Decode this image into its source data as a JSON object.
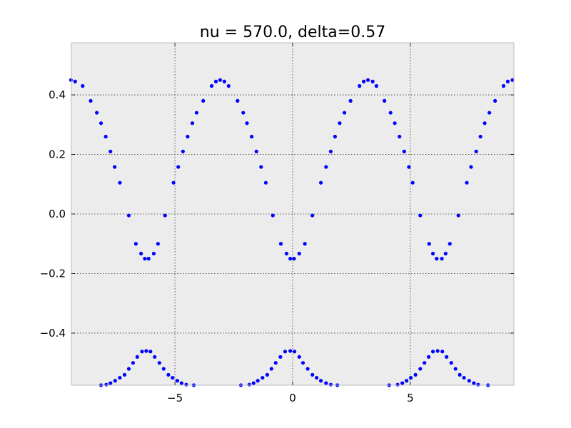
{
  "chart_data": {
    "type": "scatter",
    "title": "nu = 570.0, delta=0.57",
    "xlabel": "",
    "ylabel": "",
    "xlim": [
      -9.4,
      9.4
    ],
    "ylim": [
      -0.575,
      0.575
    ],
    "grid": true,
    "marker_color": "#0000ff",
    "background_color": "#ececec",
    "x_ticks": [
      {
        "value": -5,
        "label": "−5"
      },
      {
        "value": 0,
        "label": "0"
      },
      {
        "value": 5,
        "label": "5"
      }
    ],
    "y_ticks": [
      {
        "value": -0.4,
        "label": "−0.4"
      },
      {
        "value": -0.2,
        "label": "−0.2"
      },
      {
        "value": 0.0,
        "label": "0.0"
      },
      {
        "value": 0.2,
        "label": "0.2"
      },
      {
        "value": 0.4,
        "label": "0.4"
      }
    ],
    "series": [
      {
        "points": [
          [
            -9.42,
            0.45
          ],
          [
            -9.24,
            0.445
          ],
          [
            -8.92,
            0.43
          ],
          [
            -8.58,
            0.38
          ],
          [
            -8.32,
            0.34
          ],
          [
            -8.14,
            0.305
          ],
          [
            -7.94,
            0.26
          ],
          [
            -7.74,
            0.21
          ],
          [
            -7.56,
            0.158
          ],
          [
            -7.34,
            0.105
          ],
          [
            -6.96,
            -0.005
          ],
          [
            -6.66,
            -0.1
          ],
          [
            -6.44,
            -0.133
          ],
          [
            -6.28,
            -0.15
          ],
          [
            -6.12,
            -0.15
          ],
          [
            -5.9,
            -0.133
          ],
          [
            -5.72,
            -0.1
          ],
          [
            -5.42,
            -0.005
          ],
          [
            -5.06,
            0.105
          ],
          [
            -4.86,
            0.158
          ],
          [
            -4.66,
            0.21
          ],
          [
            -4.46,
            0.26
          ],
          [
            -4.26,
            0.305
          ],
          [
            -4.08,
            0.34
          ],
          [
            -3.8,
            0.38
          ],
          [
            -3.44,
            0.43
          ],
          [
            -3.26,
            0.445
          ],
          [
            -3.08,
            0.45
          ],
          [
            -2.9,
            0.445
          ],
          [
            -2.72,
            0.43
          ],
          [
            -2.34,
            0.38
          ],
          [
            -2.1,
            0.34
          ],
          [
            -1.94,
            0.305
          ],
          [
            -1.74,
            0.26
          ],
          [
            -1.54,
            0.21
          ],
          [
            -1.34,
            0.158
          ],
          [
            -1.14,
            0.105
          ],
          [
            -0.84,
            -0.005
          ],
          [
            -0.5,
            -0.1
          ],
          [
            -0.26,
            -0.133
          ],
          [
            -0.1,
            -0.15
          ],
          [
            0.06,
            -0.15
          ],
          [
            0.28,
            -0.133
          ],
          [
            0.52,
            -0.1
          ],
          [
            0.84,
            -0.005
          ],
          [
            1.2,
            0.105
          ],
          [
            1.42,
            0.158
          ],
          [
            1.62,
            0.21
          ],
          [
            1.8,
            0.26
          ],
          [
            2.0,
            0.305
          ],
          [
            2.2,
            0.34
          ],
          [
            2.46,
            0.38
          ],
          [
            2.84,
            0.43
          ],
          [
            3.02,
            0.445
          ],
          [
            3.2,
            0.45
          ],
          [
            3.4,
            0.445
          ],
          [
            3.56,
            0.43
          ],
          [
            3.9,
            0.38
          ],
          [
            4.16,
            0.34
          ],
          [
            4.34,
            0.305
          ],
          [
            4.54,
            0.26
          ],
          [
            4.74,
            0.21
          ],
          [
            4.94,
            0.158
          ],
          [
            5.1,
            0.105
          ],
          [
            5.42,
            -0.005
          ],
          [
            5.8,
            -0.1
          ],
          [
            5.96,
            -0.133
          ],
          [
            6.12,
            -0.15
          ],
          [
            6.34,
            -0.15
          ],
          [
            6.5,
            -0.133
          ],
          [
            6.68,
            -0.1
          ],
          [
            7.04,
            -0.005
          ],
          [
            7.4,
            0.105
          ],
          [
            7.58,
            0.158
          ],
          [
            7.8,
            0.21
          ],
          [
            7.98,
            0.26
          ],
          [
            8.16,
            0.305
          ],
          [
            8.36,
            0.34
          ],
          [
            8.6,
            0.38
          ],
          [
            8.96,
            0.43
          ],
          [
            9.14,
            0.445
          ],
          [
            9.34,
            0.45
          ]
        ]
      },
      {
        "points": [
          [
            -8.14,
            -0.575
          ],
          [
            -7.92,
            -0.573
          ],
          [
            -7.74,
            -0.568
          ],
          [
            -7.54,
            -0.56
          ],
          [
            -7.34,
            -0.55
          ],
          [
            -7.14,
            -0.54
          ],
          [
            -6.96,
            -0.52
          ],
          [
            -6.78,
            -0.5
          ],
          [
            -6.6,
            -0.48
          ],
          [
            -6.4,
            -0.462
          ],
          [
            -6.22,
            -0.46
          ],
          [
            -6.04,
            -0.462
          ],
          [
            -5.86,
            -0.48
          ],
          [
            -5.66,
            -0.5
          ],
          [
            -5.48,
            -0.52
          ],
          [
            -5.28,
            -0.54
          ],
          [
            -5.1,
            -0.55
          ],
          [
            -4.9,
            -0.56
          ],
          [
            -4.72,
            -0.568
          ],
          [
            -4.52,
            -0.573
          ],
          [
            -4.2,
            -0.575
          ],
          [
            -2.2,
            -0.575
          ],
          [
            -1.84,
            -0.573
          ],
          [
            -1.66,
            -0.568
          ],
          [
            -1.48,
            -0.56
          ],
          [
            -1.28,
            -0.55
          ],
          [
            -1.08,
            -0.54
          ],
          [
            -0.9,
            -0.52
          ],
          [
            -0.72,
            -0.5
          ],
          [
            -0.52,
            -0.48
          ],
          [
            -0.32,
            -0.462
          ],
          [
            -0.1,
            -0.46
          ],
          [
            0.08,
            -0.462
          ],
          [
            0.28,
            -0.48
          ],
          [
            0.44,
            -0.5
          ],
          [
            0.64,
            -0.52
          ],
          [
            0.84,
            -0.54
          ],
          [
            1.02,
            -0.55
          ],
          [
            1.2,
            -0.56
          ],
          [
            1.42,
            -0.568
          ],
          [
            1.62,
            -0.573
          ],
          [
            1.9,
            -0.575
          ],
          [
            4.1,
            -0.575
          ],
          [
            4.46,
            -0.573
          ],
          [
            4.66,
            -0.568
          ],
          [
            4.84,
            -0.56
          ],
          [
            5.02,
            -0.55
          ],
          [
            5.22,
            -0.54
          ],
          [
            5.42,
            -0.52
          ],
          [
            5.6,
            -0.5
          ],
          [
            5.78,
            -0.48
          ],
          [
            5.96,
            -0.462
          ],
          [
            6.16,
            -0.46
          ],
          [
            6.36,
            -0.462
          ],
          [
            6.54,
            -0.48
          ],
          [
            6.74,
            -0.5
          ],
          [
            6.92,
            -0.52
          ],
          [
            7.1,
            -0.54
          ],
          [
            7.28,
            -0.55
          ],
          [
            7.5,
            -0.56
          ],
          [
            7.7,
            -0.568
          ],
          [
            7.88,
            -0.573
          ],
          [
            8.3,
            -0.575
          ]
        ]
      }
    ]
  }
}
